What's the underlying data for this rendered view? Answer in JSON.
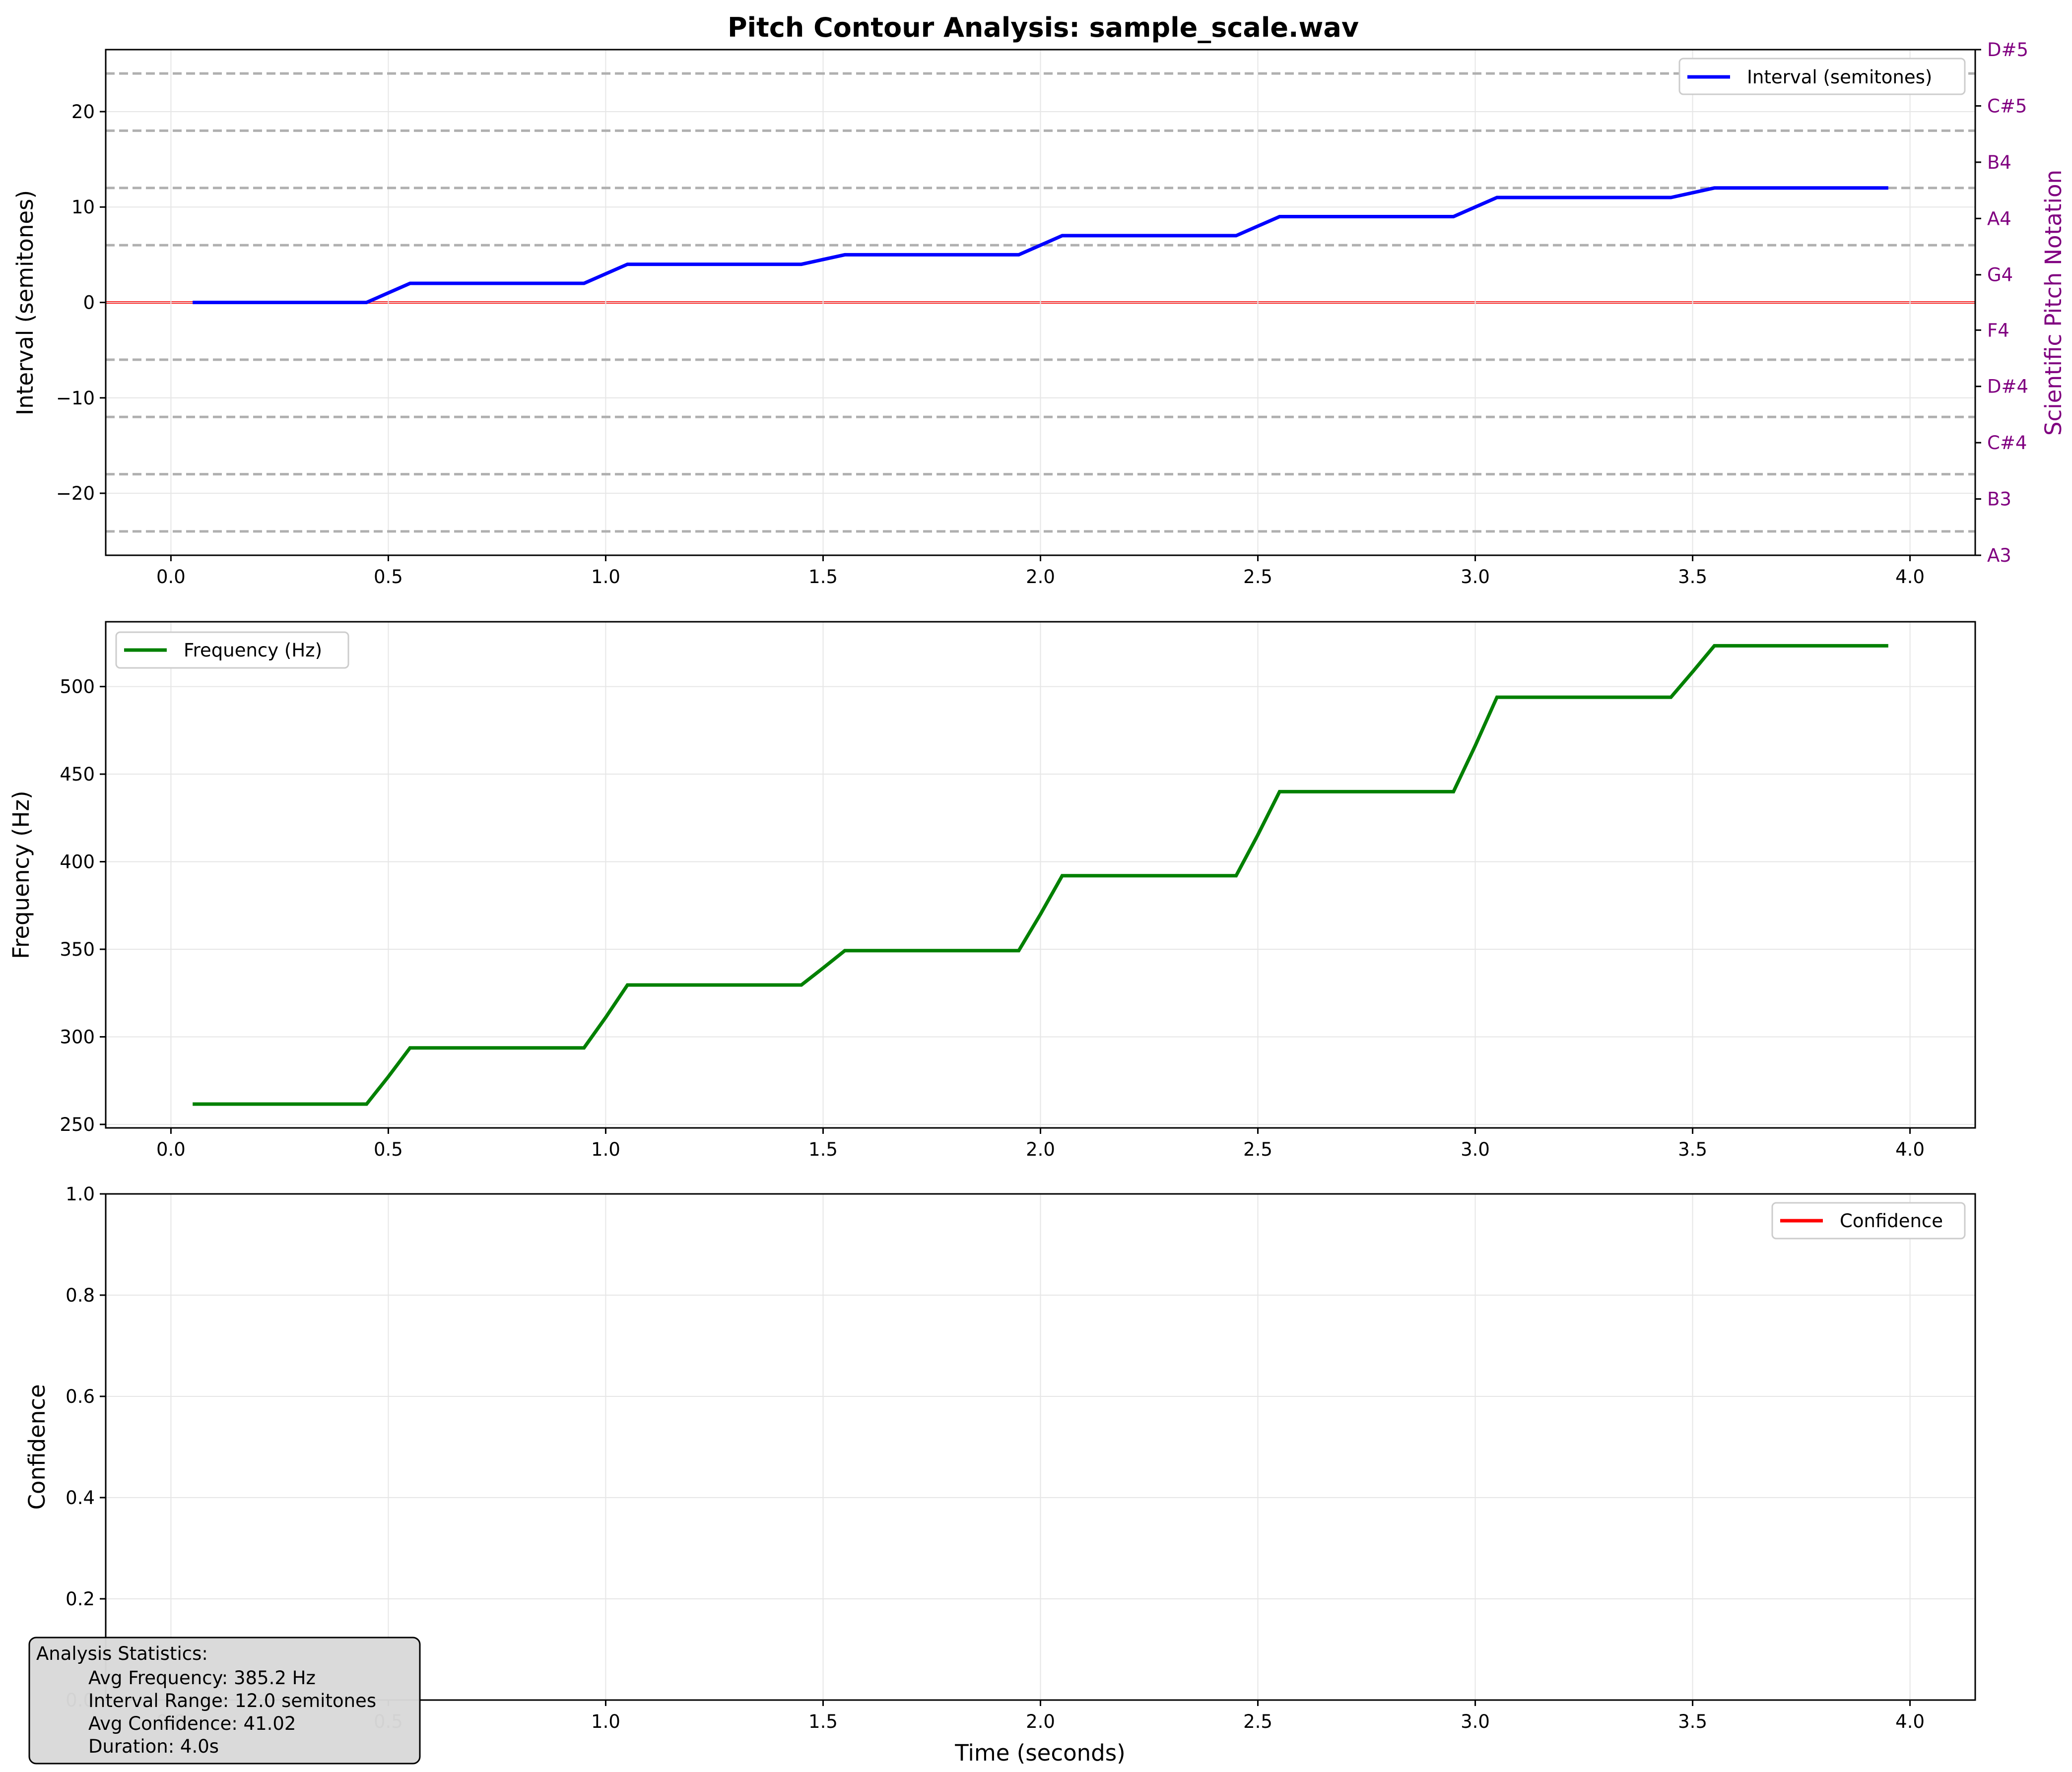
{
  "figure_title": "Pitch Contour Analysis: sample_scale.wav",
  "colors": {
    "interval": "#0000ff",
    "frequency": "#008000",
    "confidence": "#ff0000",
    "reference": "#ff0000",
    "dashed": "#b0b0b0",
    "right_axis": "#800080"
  },
  "chart_data": [
    {
      "type": "line",
      "title": "Pitch Contour Analysis: sample_scale.wav",
      "xlabel": "",
      "ylabel": "Interval (semitones)",
      "xlim": [
        -0.15,
        4.15
      ],
      "ylim": [
        -26.5,
        26.5
      ],
      "x_ticks": [
        "0.0",
        "0.5",
        "1.0",
        "1.5",
        "2.0",
        "2.5",
        "3.0",
        "3.5",
        "4.0"
      ],
      "y_ticks": [
        "20",
        "10",
        "0",
        "−10",
        "−20"
      ],
      "y_tick_values": [
        20,
        10,
        0,
        -10,
        -20
      ],
      "grid": true,
      "legend": "upper right",
      "series": [
        {
          "name": "Interval (semitones)",
          "x": [
            0.05,
            0.45,
            0.55,
            0.95,
            1.05,
            1.45,
            1.55,
            1.95,
            2.05,
            2.45,
            2.55,
            2.95,
            3.05,
            3.45,
            3.55,
            3.95
          ],
          "y": [
            0,
            0,
            2,
            2,
            4,
            4,
            5,
            5,
            7,
            7,
            9,
            9,
            11,
            11,
            12,
            12
          ]
        }
      ],
      "reference_line_y": 0,
      "dashed_lines_y": [
        -24,
        -18,
        -12,
        -6,
        6,
        12,
        18,
        24
      ],
      "right_axis": {
        "label": "Scientific Pitch Notation",
        "ticks": [
          "A3",
          "B3",
          "C#4",
          "D#4",
          "F4",
          "G4",
          "A4",
          "B4",
          "C#5",
          "D#5"
        ],
        "tick_values": [
          -26.5,
          -20.6,
          -14.7,
          -8.8,
          -2.9,
          2.9,
          8.8,
          14.7,
          20.6,
          26.5
        ]
      }
    },
    {
      "type": "line",
      "xlabel": "",
      "ylabel": "Frequency (Hz)",
      "xlim": [
        -0.15,
        4.15
      ],
      "ylim": [
        248,
        537
      ],
      "x_ticks": [
        "0.0",
        "0.5",
        "1.0",
        "1.5",
        "2.0",
        "2.5",
        "3.0",
        "3.5",
        "4.0"
      ],
      "y_ticks": [
        "500",
        "450",
        "400",
        "350",
        "300",
        "250"
      ],
      "y_tick_values": [
        500,
        450,
        400,
        350,
        300,
        250
      ],
      "grid": true,
      "legend": "upper left",
      "series": [
        {
          "name": "Frequency (Hz)",
          "x": [
            0.05,
            0.45,
            0.5,
            0.55,
            0.95,
            1.0,
            1.05,
            1.45,
            1.5,
            1.55,
            1.95,
            2.0,
            2.05,
            2.45,
            2.5,
            2.55,
            2.95,
            3.0,
            3.05,
            3.45,
            3.5,
            3.55,
            3.95
          ],
          "y": [
            261.6,
            261.6,
            277.2,
            293.7,
            293.7,
            311.1,
            329.6,
            329.6,
            339.3,
            349.2,
            349.2,
            370.0,
            392.0,
            392.0,
            415.3,
            440.0,
            440.0,
            466.2,
            493.9,
            493.9,
            508.4,
            523.3,
            523.3
          ]
        }
      ]
    },
    {
      "type": "line",
      "xlabel": "Time (seconds)",
      "ylabel": "Confidence",
      "xlim": [
        -0.15,
        4.15
      ],
      "ylim": [
        0.0,
        1.0
      ],
      "x_ticks": [
        "0.0",
        "0.5",
        "1.0",
        "1.5",
        "2.0",
        "2.5",
        "3.0",
        "3.5",
        "4.0"
      ],
      "y_ticks": [
        "1.0",
        "0.8",
        "0.6",
        "0.4",
        "0.2",
        "0.0"
      ],
      "y_tick_values": [
        1.0,
        0.8,
        0.6,
        0.4,
        0.2,
        0.0
      ],
      "grid": true,
      "legend": "upper right",
      "series": [
        {
          "name": "Confidence",
          "x": [],
          "y": []
        }
      ]
    }
  ],
  "stats_box": {
    "heading": "Analysis Statistics:",
    "lines": [
      "Avg Frequency: 385.2 Hz",
      "Interval Range: 12.0 semitones",
      "Avg Confidence: 41.02",
      "Duration: 4.0s"
    ]
  }
}
